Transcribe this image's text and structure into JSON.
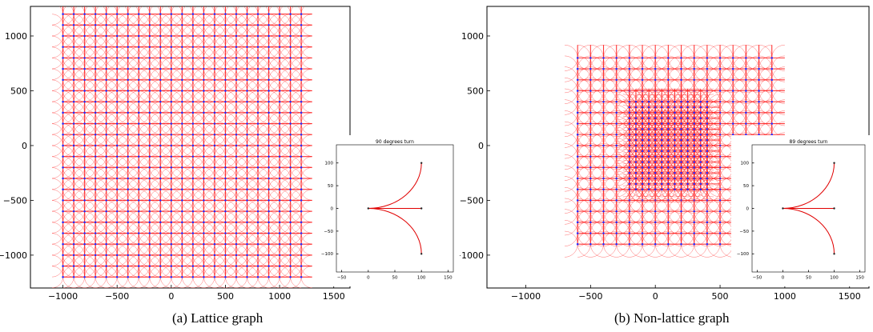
{
  "figure": {
    "captions": [
      "(a) Lattice graph",
      "(b) Non-lattice graph"
    ]
  },
  "chart_data": [
    {
      "type": "scatter",
      "name": "lattice",
      "xlim": [
        -1300,
        1650
      ],
      "ylim": [
        -1300,
        1270
      ],
      "xticks": [
        -1000,
        -500,
        0,
        500,
        1000,
        1500
      ],
      "yticks": [
        -1000,
        -500,
        0,
        500,
        1000
      ],
      "grid": false,
      "lattice": {
        "x_start": -1000,
        "x_end": 1200,
        "y_start": -1200,
        "y_end": 1200,
        "spacing": 100,
        "arc_radius": 100
      },
      "node_color": "#2a2aff",
      "edge_color": "#ff2020"
    },
    {
      "type": "scatter",
      "name": "non-lattice",
      "xlim": [
        -1300,
        1650
      ],
      "ylim": [
        -1300,
        1270
      ],
      "xticks": [
        -1000,
        -500,
        0,
        500,
        1000,
        1500
      ],
      "yticks": [
        -1000,
        -500,
        0,
        500,
        1000
      ],
      "grid": false,
      "outer_region": {
        "x_start": -600,
        "x_end": 900,
        "y_start": -900,
        "y_end": 800,
        "spacing": 100
      },
      "dense_region": {
        "x_start": -200,
        "x_end": 400,
        "y_start": -400,
        "y_end": 400,
        "spacing": 50
      },
      "node_color": "#2a2aff",
      "edge_color": "#ff2020"
    },
    {
      "type": "line",
      "name": "inset-a",
      "title": "90 degrees turn",
      "xlim": [
        -60,
        160
      ],
      "ylim": [
        -140,
        140
      ],
      "xticks": [
        -50,
        0,
        50,
        100,
        150
      ],
      "yticks": [
        -100,
        -50,
        0,
        50,
        100
      ],
      "paths": [
        {
          "name": "left turn",
          "kind": "quarter-arc",
          "start": [
            0,
            0
          ],
          "end": [
            100,
            100
          ]
        },
        {
          "name": "right turn",
          "kind": "quarter-arc",
          "start": [
            0,
            0
          ],
          "end": [
            100,
            -100
          ]
        },
        {
          "name": "straight",
          "kind": "line",
          "start": [
            0,
            0
          ],
          "end": [
            100,
            0
          ]
        }
      ],
      "line_color": "#e00000"
    },
    {
      "type": "line",
      "name": "inset-b",
      "title": "89 degrees turn",
      "xlim": [
        -60,
        160
      ],
      "ylim": [
        -140,
        140
      ],
      "xticks": [
        -50,
        0,
        50,
        100,
        150
      ],
      "yticks": [
        -100,
        -50,
        0,
        50,
        100
      ],
      "paths": [
        {
          "name": "left turn",
          "kind": "quarter-arc",
          "start": [
            0,
            0
          ],
          "end": [
            100,
            100
          ]
        },
        {
          "name": "right turn",
          "kind": "quarter-arc",
          "start": [
            0,
            0
          ],
          "end": [
            100,
            -100
          ]
        },
        {
          "name": "straight",
          "kind": "line",
          "start": [
            0,
            0
          ],
          "end": [
            100,
            0
          ]
        }
      ],
      "line_color": "#e00000"
    }
  ]
}
